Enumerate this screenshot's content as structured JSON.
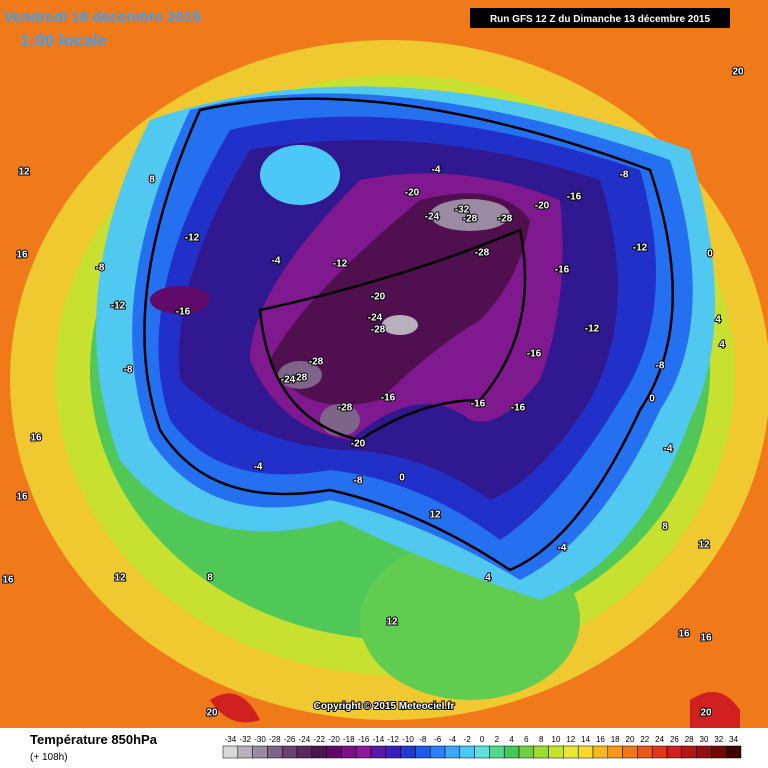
{
  "header": {
    "date": "Vendredi 18 décembre 2015",
    "time": "1:00 locale",
    "run": "Run GFS 12 Z du Dimanche 13 décembre 2015"
  },
  "footer": {
    "title": "Température 850hPa",
    "lead": "(+ 108h)",
    "copyright": "Copyright © 2015 Meteociel.fr"
  },
  "legend": {
    "values": [
      -34,
      -32,
      -30,
      -28,
      -26,
      -24,
      -22,
      -20,
      -18,
      -16,
      -14,
      -12,
      -10,
      -8,
      -6,
      -4,
      -2,
      0,
      2,
      4,
      6,
      8,
      10,
      12,
      14,
      16,
      18,
      20,
      22,
      24,
      26,
      28,
      30,
      32,
      34
    ],
    "colors": [
      "#d8d8d8",
      "#b8b0bc",
      "#9a8aa2",
      "#7e6488",
      "#6a4070",
      "#5a2860",
      "#4a1450",
      "#600a6a",
      "#7a1084",
      "#8e189a",
      "#5a1aa8",
      "#3a20b8",
      "#2438d0",
      "#1e5ae8",
      "#2a80f4",
      "#3ca6f8",
      "#4cc8f8",
      "#5ee0e0",
      "#50d890",
      "#40c858",
      "#70d040",
      "#a0dc30",
      "#c8e428",
      "#e8e830",
      "#f8d828",
      "#f8b820",
      "#f89818",
      "#f07818",
      "#e85818",
      "#e03818",
      "#d02020",
      "#b01818",
      "#901010",
      "#700808",
      "#400000"
    ]
  },
  "map_labels": [
    "-28",
    "-24",
    "-28",
    "-32",
    "-28",
    "-28",
    "-20",
    "-16",
    "-20",
    "-20",
    "-24",
    "-28",
    "-28",
    "-24",
    "-28",
    "-16",
    "-20",
    "-16",
    "-16",
    "-16",
    "-16",
    "-12",
    "-12",
    "-8",
    "-8",
    "-4",
    "-4",
    "-4",
    "-8",
    "-12",
    "-12",
    "-8",
    "-4",
    "0",
    "0",
    "4",
    "4",
    "8",
    "8",
    "12",
    "12",
    "12",
    "12",
    "16",
    "16",
    "16",
    "16",
    "16",
    "20",
    "20",
    "20",
    "-4",
    "-8",
    "-12",
    "-16",
    "0",
    "4",
    "8",
    "12",
    "16"
  ]
}
